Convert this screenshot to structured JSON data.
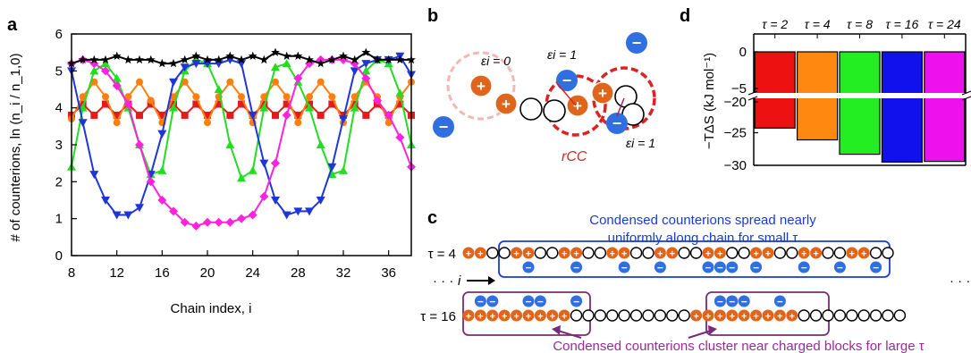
{
  "panels": {
    "a": "a",
    "b": "b",
    "c": "c",
    "d": "d"
  },
  "chart_data": [
    {
      "panel": "a",
      "type": "line",
      "xlabel": "Chain index, i",
      "ylabel": "# of counterions, ln (n_i / n_1,0)",
      "xlim": [
        8,
        38
      ],
      "ylim": [
        0,
        6
      ],
      "xticks": [
        8,
        12,
        16,
        20,
        24,
        28,
        32,
        36
      ],
      "yticks": [
        0,
        1,
        2,
        3,
        4,
        5,
        6
      ],
      "x": [
        8,
        9,
        10,
        11,
        12,
        13,
        14,
        15,
        16,
        17,
        18,
        19,
        20,
        21,
        22,
        23,
        24,
        25,
        26,
        27,
        28,
        29,
        30,
        31,
        32,
        33,
        34,
        35,
        36,
        37,
        38
      ],
      "series": [
        {
          "color": "#e41a1c",
          "marker": "square",
          "values": [
            3.8,
            4.1,
            3.8,
            4.1,
            3.8,
            4.1,
            3.8,
            4.1,
            3.8,
            4.1,
            3.8,
            4.1,
            3.8,
            4.1,
            3.8,
            4.1,
            3.8,
            4.1,
            3.8,
            4.1,
            3.8,
            4.1,
            3.8,
            4.1,
            3.8,
            4.1,
            3.8,
            4.1,
            3.8,
            4.1,
            3.8
          ]
        },
        {
          "color": "#ff7f0e",
          "marker": "circle",
          "values": [
            3.7,
            4.3,
            4.7,
            4.3,
            3.6,
            4.3,
            4.7,
            4.2,
            3.6,
            4.3,
            4.7,
            4.3,
            3.6,
            4.3,
            4.7,
            4.3,
            3.6,
            4.3,
            4.7,
            4.3,
            3.6,
            4.3,
            4.7,
            4.3,
            3.6,
            4.3,
            4.7,
            4.3,
            3.6,
            4.3,
            4.7
          ]
        },
        {
          "color": "#22dd22",
          "marker": "triangle-up",
          "values": [
            2.4,
            4.0,
            5.0,
            5.2,
            4.8,
            4.0,
            3.0,
            2.2,
            2.3,
            4.0,
            5.0,
            5.3,
            5.2,
            4.5,
            3.0,
            2.1,
            2.3,
            4.0,
            5.1,
            5.2,
            4.7,
            4.0,
            3.0,
            2.2,
            2.3,
            4.0,
            5.0,
            5.3,
            5.2,
            4.4,
            3.0
          ]
        },
        {
          "color": "#1f36d6",
          "marker": "triangle-down",
          "values": [
            5.0,
            3.6,
            2.2,
            1.5,
            1.1,
            1.1,
            1.3,
            2.2,
            3.3,
            4.7,
            5.1,
            5.2,
            5.2,
            5.2,
            5.3,
            5.2,
            3.8,
            2.5,
            1.5,
            1.1,
            1.2,
            1.2,
            1.5,
            2.4,
            3.7,
            5.0,
            5.2,
            5.3,
            5.3,
            5.4,
            4.9
          ]
        },
        {
          "color": "#ff22dd",
          "marker": "diamond",
          "values": [
            5.2,
            5.3,
            5.2,
            5.0,
            4.6,
            4.1,
            3.0,
            2.0,
            1.5,
            1.2,
            0.9,
            0.8,
            0.9,
            0.9,
            0.9,
            1.0,
            1.1,
            1.6,
            2.5,
            3.8,
            4.8,
            5.2,
            5.3,
            5.3,
            5.3,
            5.2,
            4.8,
            4.2,
            3.8,
            3.2,
            2.4
          ]
        },
        {
          "color": "#000000",
          "marker": "star",
          "values": [
            5.2,
            5.3,
            5.3,
            5.3,
            5.4,
            5.3,
            5.3,
            5.3,
            5.2,
            5.2,
            5.3,
            5.4,
            5.3,
            5.3,
            5.4,
            5.3,
            5.4,
            5.3,
            5.5,
            5.4,
            5.4,
            5.3,
            5.2,
            5.3,
            5.4,
            5.3,
            5.5,
            5.3,
            5.3,
            5.3,
            5.3
          ]
        }
      ]
    },
    {
      "panel": "d",
      "type": "bar",
      "ylabel": "−TΔS (kJ mol⁻¹)",
      "categories": [
        "τ = 2",
        "τ = 4",
        "τ = 8",
        "τ = 16",
        "τ = 24"
      ],
      "values": [
        -24.3,
        -26.1,
        -28.3,
        -29.5,
        -29.4
      ],
      "colors": [
        "#ee1111",
        "#ff8811",
        "#22ee22",
        "#1111ee",
        "#ee11ee"
      ],
      "ylim": [
        -30,
        0
      ],
      "axis_break": [
        -5,
        -20
      ],
      "ytick_labels": [
        "0",
        "−5",
        "−20",
        "−25",
        "−30"
      ]
    }
  ],
  "panel_b": {
    "eps0": "εi = 0",
    "eps1": "εi = 1",
    "eps1b": "εi = 1",
    "rcc": "rCC",
    "plus": "+",
    "minus": "−"
  },
  "panel_c": {
    "headline1": "Condensed counterions spread nearly",
    "headline2": "uniformly along chain for small τ",
    "tau4": "τ = 4",
    "tau16": "τ = 16",
    "index": "i",
    "dots": "· · ·",
    "footer": "Condensed counterions cluster near charged blocks for large τ"
  }
}
